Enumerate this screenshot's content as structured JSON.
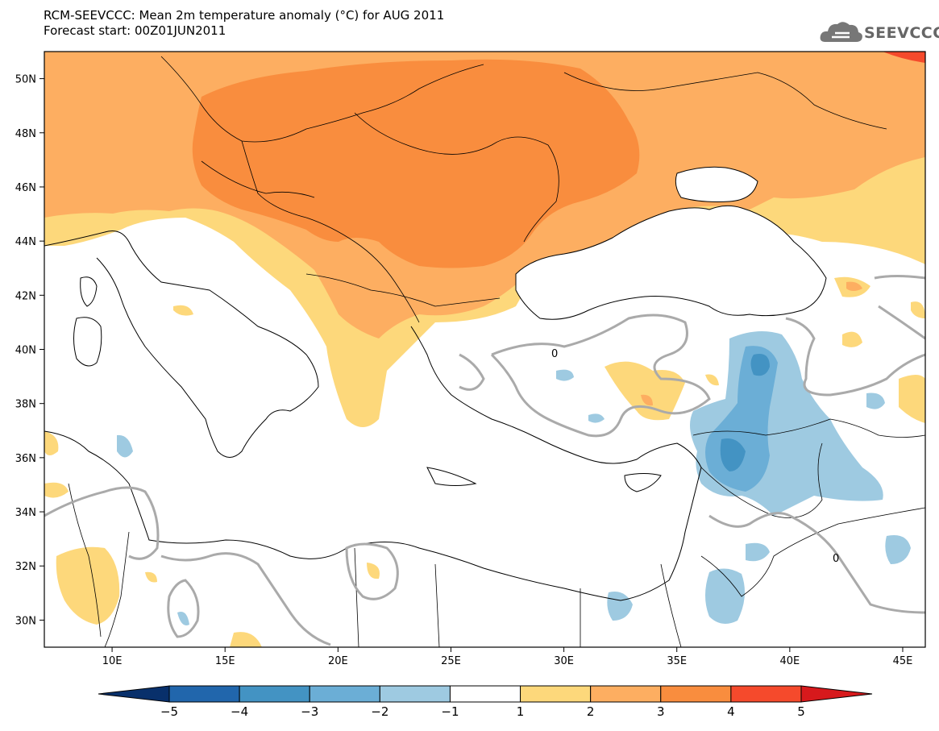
{
  "header": {
    "title_line1": "RCM-SEEVCCC: Mean 2m temperature anomaly (°C) for AUG 2011",
    "title_line2": "Forecast start: 00Z01JUN2011"
  },
  "logo": {
    "text": "SEEVCCC",
    "icon": "cloud-icon"
  },
  "map": {
    "lon_ticks": [
      "10E",
      "15E",
      "20E",
      "25E",
      "30E",
      "35E",
      "40E",
      "45E"
    ],
    "lat_ticks": [
      "50N",
      "48N",
      "46N",
      "44N",
      "42N",
      "40N",
      "38N",
      "36N",
      "34N",
      "32N",
      "30N"
    ],
    "contour_label": "0"
  },
  "colorbar": {
    "labels": [
      "−5",
      "−4",
      "−3",
      "−2",
      "−1",
      "1",
      "2",
      "3",
      "4",
      "5"
    ],
    "colors": [
      "#08306b",
      "#2166ac",
      "#4393c3",
      "#6baed6",
      "#9ecae1",
      "#ffffff",
      "#fdd87b",
      "#fdae61",
      "#f98d3e",
      "#f54a2c",
      "#d7191c"
    ]
  }
}
